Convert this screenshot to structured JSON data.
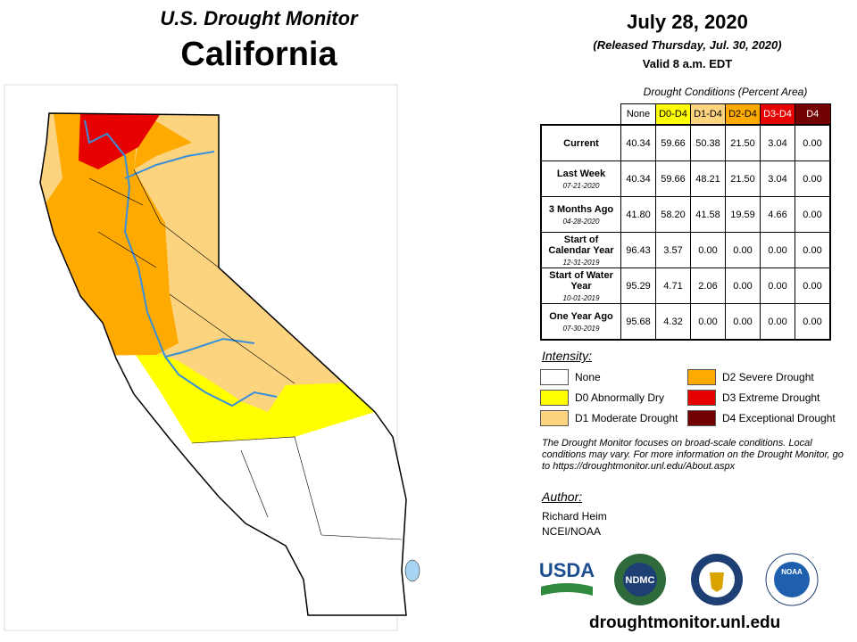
{
  "header": {
    "title": "U.S. Drought Monitor",
    "state": "California",
    "date": "July 28, 2020",
    "released": "(Released Thursday, Jul. 30, 2020)",
    "valid": "Valid 8 a.m. EDT"
  },
  "table": {
    "caption": "Drought Conditions (Percent Area)",
    "columns": [
      "None",
      "D0-D4",
      "D1-D4",
      "D2-D4",
      "D3-D4",
      "D4"
    ],
    "rows": [
      {
        "label": "Current",
        "values": [
          "40.34",
          "59.66",
          "50.38",
          "21.50",
          "3.04",
          "0.00"
        ]
      },
      {
        "label": "Last Week",
        "date": "07-21-2020",
        "values": [
          "40.34",
          "59.66",
          "48.21",
          "21.50",
          "3.04",
          "0.00"
        ]
      },
      {
        "label": "3 Months Ago",
        "date": "04-28-2020",
        "values": [
          "41.80",
          "58.20",
          "41.58",
          "19.59",
          "4.66",
          "0.00"
        ]
      },
      {
        "label": "Start of Calendar Year",
        "date": "12-31-2019",
        "values": [
          "96.43",
          "3.57",
          "0.00",
          "0.00",
          "0.00",
          "0.00"
        ]
      },
      {
        "label": "Start of Water Year",
        "date": "10-01-2019",
        "values": [
          "95.29",
          "4.71",
          "2.06",
          "0.00",
          "0.00",
          "0.00"
        ]
      },
      {
        "label": "One Year Ago",
        "date": "07-30-2019",
        "values": [
          "95.68",
          "4.32",
          "0.00",
          "0.00",
          "0.00",
          "0.00"
        ]
      }
    ]
  },
  "legend": {
    "title": "Intensity:",
    "items": [
      {
        "label": "None",
        "color": "#ffffff"
      },
      {
        "label": "D0 Abnormally Dry",
        "color": "#ffff00"
      },
      {
        "label": "D1 Moderate Drought",
        "color": "#fcd37f"
      },
      {
        "label": "D2 Severe Drought",
        "color": "#ffaa00"
      },
      {
        "label": "D3 Extreme Drought",
        "color": "#e60000"
      },
      {
        "label": "D4 Exceptional Drought",
        "color": "#730000"
      }
    ]
  },
  "note": "The Drought Monitor focuses on broad-scale conditions. Local conditions may vary. For more information on the Drought Monitor, go to https://droughtmonitor.unl.edu/About.aspx",
  "author": {
    "heading": "Author:",
    "name": "Richard Heim",
    "org": "NCEI/NOAA"
  },
  "logos": [
    "USDA",
    "NDMC",
    "NOAA"
  ],
  "footer": "droughtmonitor.unl.edu"
}
